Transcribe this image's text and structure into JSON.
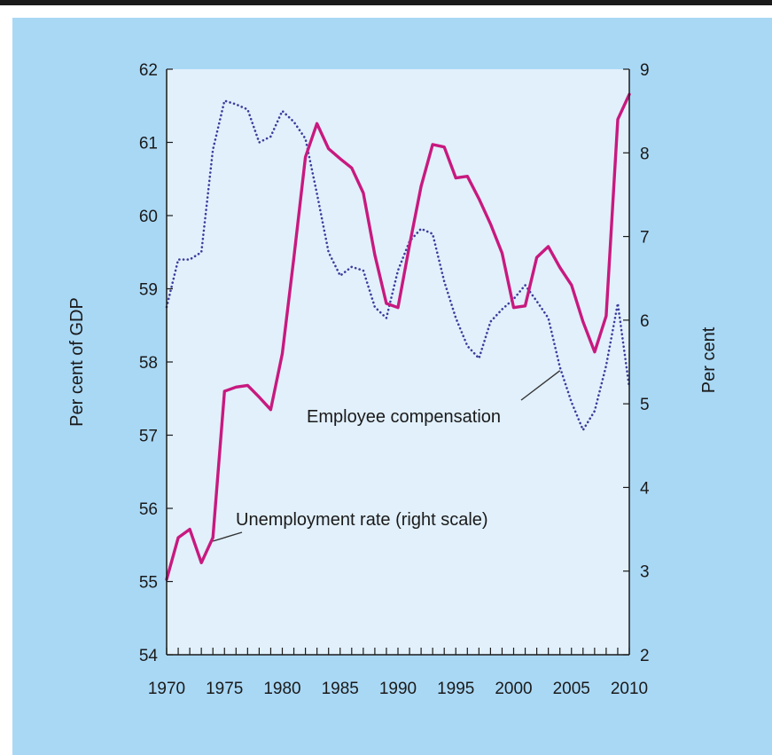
{
  "chart_data": {
    "type": "line",
    "title": "",
    "xlabel": "",
    "ylabel": "Per cent of GDP",
    "y2label": "Per cent",
    "xlim": [
      1970,
      2010
    ],
    "ylim": [
      54,
      62
    ],
    "y2lim": [
      2,
      9
    ],
    "x_ticks": [
      1970,
      1975,
      1980,
      1985,
      1990,
      1995,
      2000,
      2005,
      2010
    ],
    "y_ticks": [
      54,
      55,
      56,
      57,
      58,
      59,
      60,
      61,
      62
    ],
    "y2_ticks": [
      2,
      3,
      4,
      5,
      6,
      7,
      8,
      9
    ],
    "grid": false,
    "colors": {
      "panel": "#a9d8f5",
      "plot_area": "#e1f0fb",
      "employee_compensation": "#3c3c9c",
      "unemployment": "#c8197f"
    },
    "series": [
      {
        "name": "Employee compensation",
        "axis": "left",
        "style": "dotted",
        "x": [
          1970,
          1971,
          1972,
          1973,
          1974,
          1975,
          1976,
          1977,
          1978,
          1979,
          1980,
          1981,
          1982,
          1983,
          1984,
          1985,
          1986,
          1987,
          1988,
          1989,
          1990,
          1991,
          1992,
          1993,
          1994,
          1995,
          1996,
          1997,
          1998,
          1999,
          2000,
          2001,
          2002,
          2003,
          2004,
          2005,
          2006,
          2007,
          2008,
          2009,
          2010
        ],
        "values": [
          58.75,
          59.4,
          59.4,
          59.5,
          60.9,
          61.57,
          61.52,
          61.45,
          61.0,
          61.08,
          61.43,
          61.28,
          61.05,
          60.3,
          59.5,
          59.18,
          59.3,
          59.25,
          58.75,
          58.6,
          59.25,
          59.65,
          59.82,
          59.75,
          59.1,
          58.6,
          58.22,
          58.05,
          58.55,
          58.72,
          58.86,
          59.05,
          58.83,
          58.6,
          57.93,
          57.45,
          57.07,
          57.33,
          57.95,
          58.8,
          57.65
        ]
      },
      {
        "name": "Unemployment rate (right scale)",
        "axis": "right",
        "style": "solid",
        "x": [
          1970,
          1971,
          1972,
          1973,
          1974,
          1975,
          1976,
          1977,
          1978,
          1979,
          1980,
          1981,
          1982,
          1983,
          1984,
          1985,
          1986,
          1987,
          1988,
          1989,
          1990,
          1991,
          1992,
          1993,
          1994,
          1995,
          1996,
          1997,
          1998,
          1999,
          2000,
          2001,
          2002,
          2003,
          2004,
          2005,
          2006,
          2007,
          2008,
          2009,
          2010
        ],
        "values": [
          2.9,
          3.4,
          3.5,
          3.1,
          3.4,
          5.15,
          5.2,
          5.22,
          5.08,
          4.93,
          5.6,
          6.75,
          7.95,
          8.35,
          8.05,
          7.93,
          7.82,
          7.52,
          6.78,
          6.2,
          6.15,
          6.9,
          7.6,
          8.1,
          8.07,
          7.7,
          7.72,
          7.45,
          7.15,
          6.8,
          6.15,
          6.17,
          6.75,
          6.88,
          6.63,
          6.42,
          5.98,
          5.62,
          6.05,
          8.4,
          8.7
        ]
      }
    ],
    "annotations": [
      {
        "text": "Employee compensation",
        "series": "Employee compensation",
        "pointer_year": 2004
      },
      {
        "text": "Unemployment rate (right scale)",
        "series": "Unemployment rate (right scale)",
        "pointer_year": 1974
      }
    ]
  }
}
